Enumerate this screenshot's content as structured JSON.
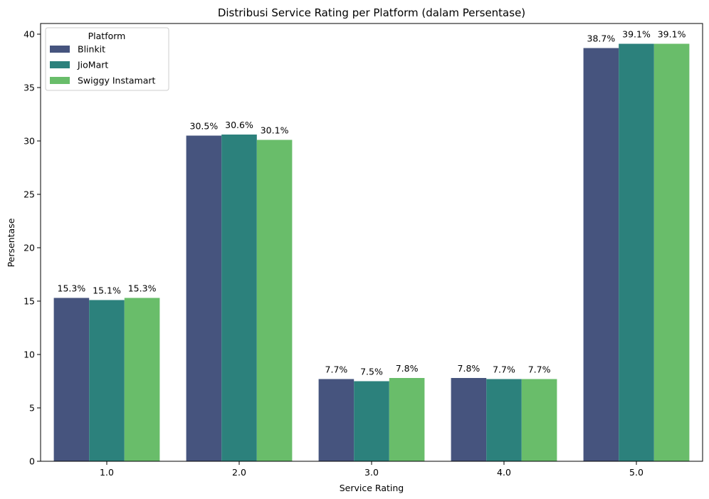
{
  "chart_data": {
    "type": "bar",
    "title": "Distribusi Service Rating per Platform (dalam Persentase)",
    "xlabel": "Service Rating",
    "ylabel": "Persentase",
    "categories": [
      "1.0",
      "2.0",
      "3.0",
      "4.0",
      "5.0"
    ],
    "ylim": [
      0,
      41
    ],
    "yticks": [
      0,
      5,
      10,
      15,
      20,
      25,
      30,
      35,
      40
    ],
    "grid": false,
    "legend": {
      "title": "Platform",
      "placement": "top-left"
    },
    "series": [
      {
        "name": "Blinkit",
        "color": "#46547e",
        "values": [
          15.3,
          30.5,
          7.7,
          7.8,
          38.7
        ],
        "labels": [
          "15.3%",
          "30.5%",
          "7.7%",
          "7.8%",
          "38.7%"
        ]
      },
      {
        "name": "JioMart",
        "color": "#2c817c",
        "values": [
          15.1,
          30.6,
          7.5,
          7.7,
          39.1
        ],
        "labels": [
          "15.1%",
          "30.6%",
          "7.5%",
          "7.7%",
          "39.1%"
        ]
      },
      {
        "name": "Swiggy Instamart",
        "color": "#69bd6a",
        "values": [
          15.3,
          30.1,
          7.8,
          7.7,
          39.1
        ],
        "labels": [
          "15.3%",
          "30.1%",
          "7.8%",
          "7.7%",
          "39.1%"
        ]
      }
    ]
  }
}
